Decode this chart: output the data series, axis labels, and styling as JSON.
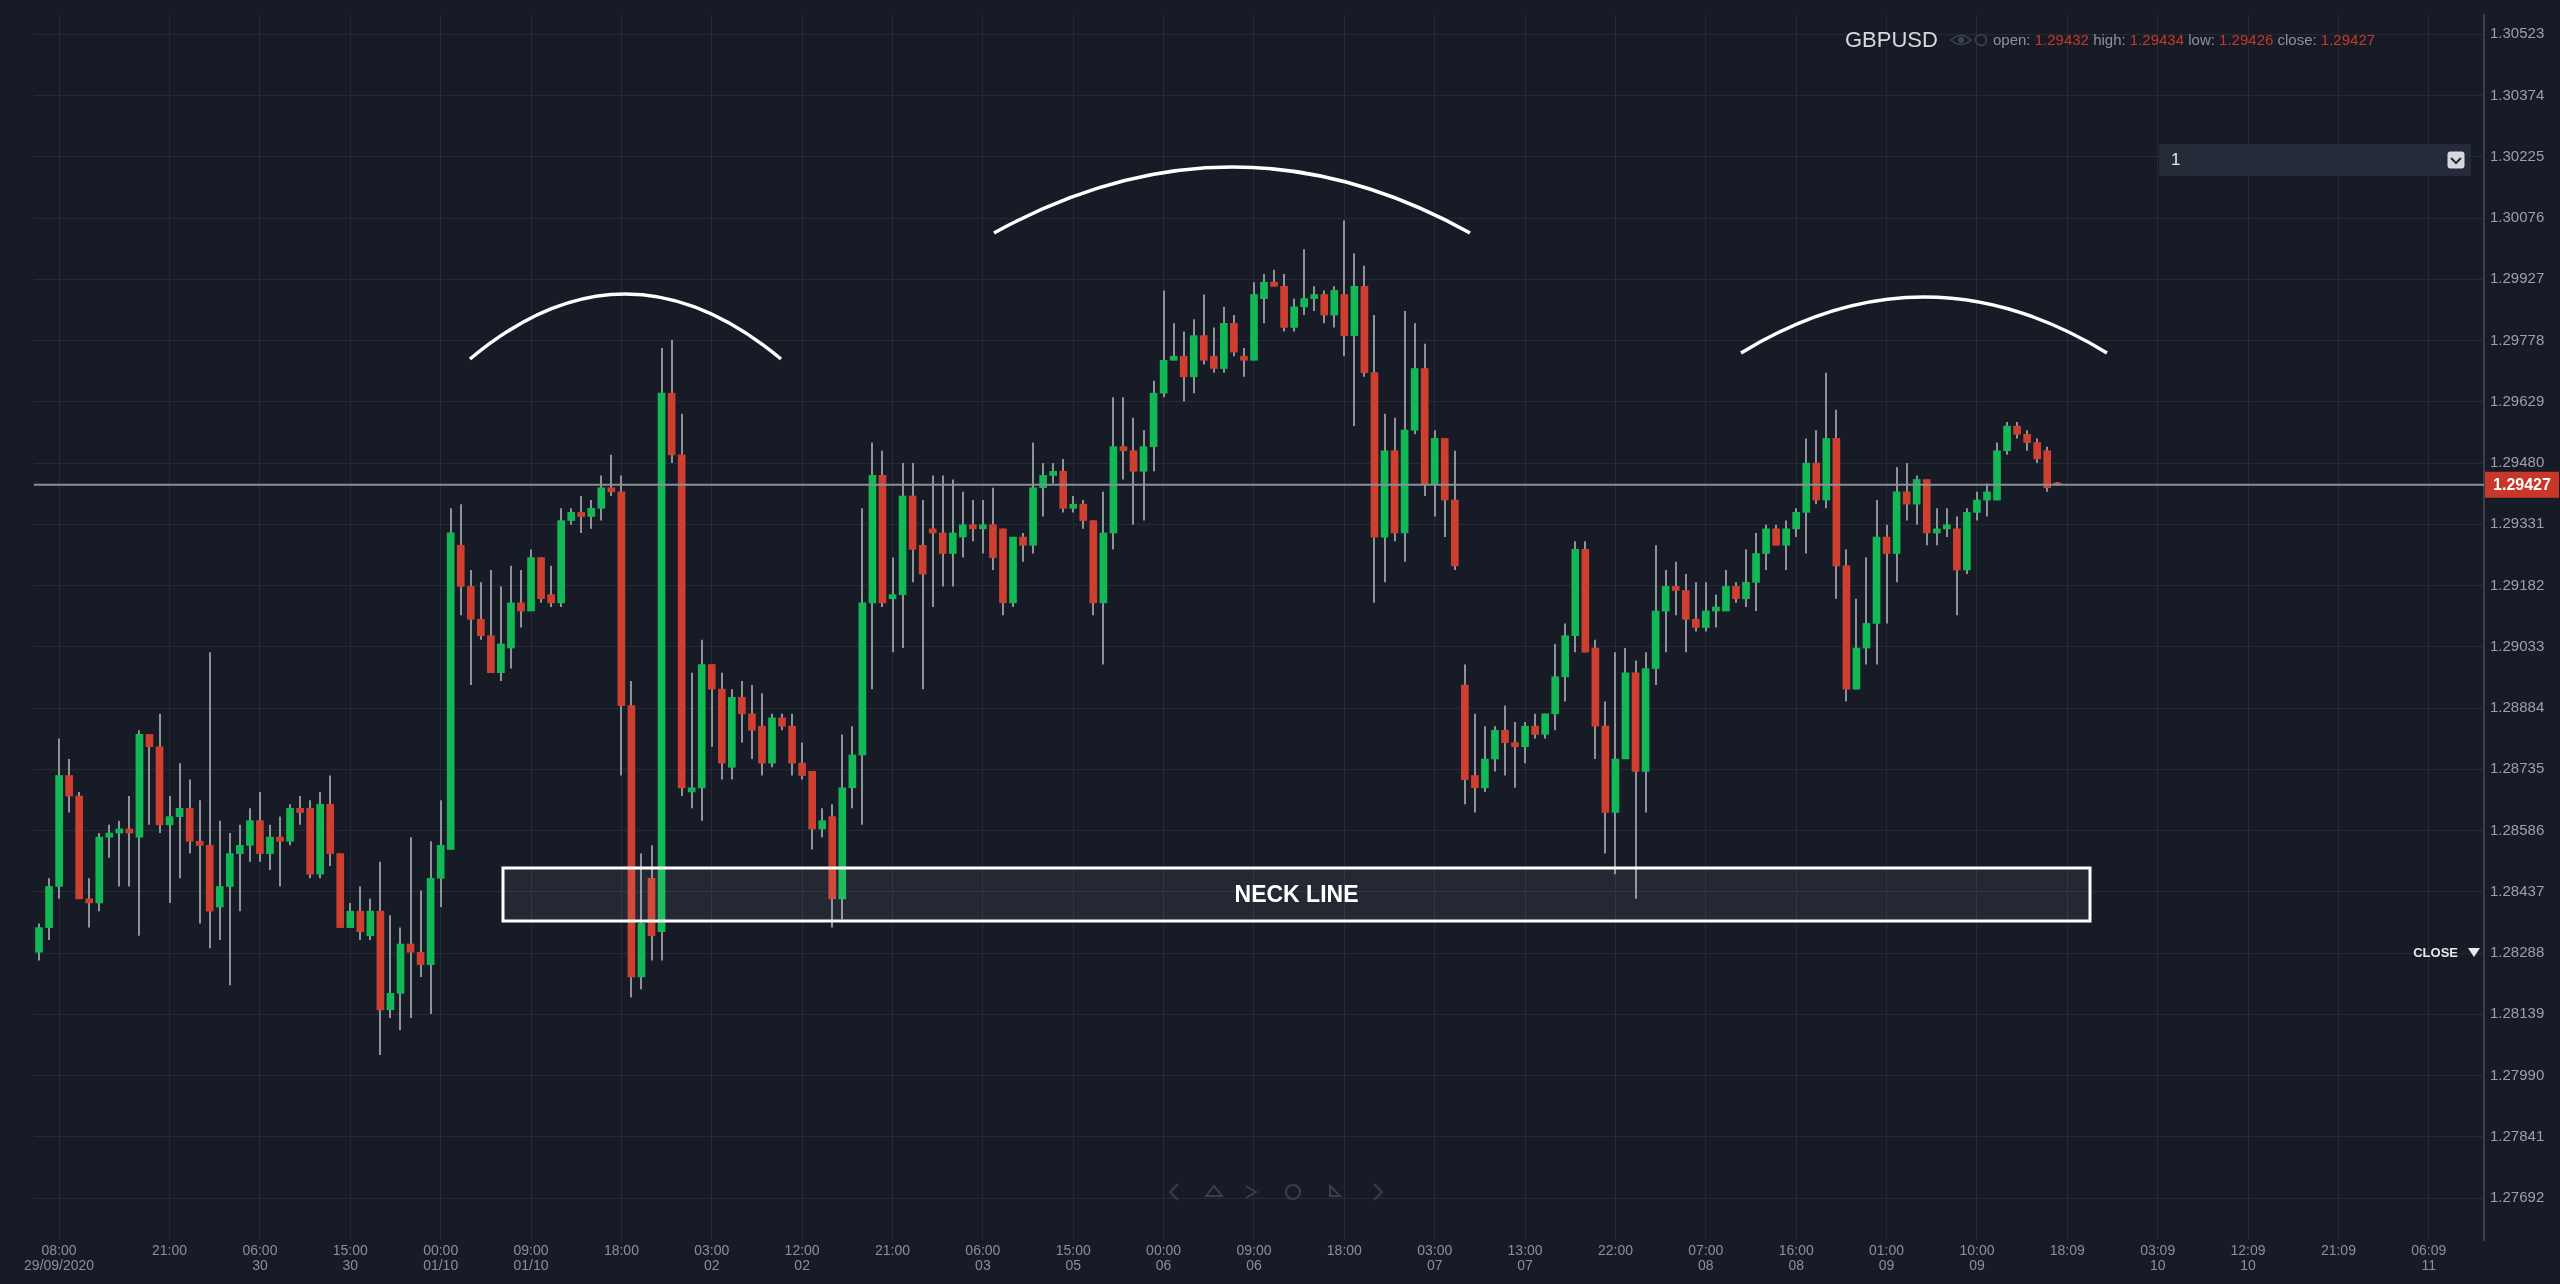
{
  "chart_data": {
    "type": "candlestick",
    "title": "GBPUSD",
    "subtitle": "open: 1.29432 high: 1.29434 low: 1.29426 close: 1.29427",
    "categories": [
      null,
      null,
      "08:00\n29/09/2020",
      null,
      null,
      null,
      null,
      null,
      null,
      null,
      null,
      null,
      null,
      "21:00",
      null,
      null,
      null,
      null,
      null,
      null,
      null,
      null,
      "06:00\n30",
      null,
      null,
      null,
      null,
      null,
      null,
      null,
      null,
      "15:00\n30",
      null,
      null,
      null,
      null,
      null,
      null,
      null,
      null,
      "00:00\n01/10",
      null,
      null,
      null,
      null,
      null,
      null,
      null,
      null,
      "09:00\n01/10",
      null,
      null,
      null,
      null,
      null,
      null,
      null,
      null,
      "18:00",
      null,
      null,
      null,
      null,
      null,
      null,
      null,
      null,
      "03:00\n02",
      null,
      null,
      null,
      null,
      null,
      null,
      null,
      null,
      "12:00\n02",
      null,
      null,
      null,
      null,
      null,
      null,
      null,
      null,
      "21:00",
      null,
      null,
      null,
      null,
      null,
      null,
      null,
      null,
      "06:00\n03",
      null,
      null,
      null,
      null,
      null,
      null,
      null,
      null,
      "15:00\n05",
      null,
      null,
      null,
      null,
      null,
      null,
      null,
      null,
      "00:00\n06",
      null,
      null,
      null,
      null,
      null,
      null,
      null,
      null,
      "09:00\n06",
      null,
      null,
      null,
      null,
      null,
      null,
      null,
      null,
      "18:00",
      null,
      null,
      null,
      null,
      null,
      null,
      null,
      null,
      "03:00\n07",
      null,
      null,
      null,
      null,
      null,
      null,
      null,
      null,
      "13:00\n07",
      null,
      null,
      null,
      null,
      null,
      null,
      null,
      null,
      "22:00",
      null,
      null,
      null,
      null,
      null,
      null,
      null,
      null,
      "07:00\n08",
      null,
      null,
      null,
      null,
      null,
      null,
      null,
      null,
      "16:00\n08",
      null,
      null,
      null,
      null,
      null,
      null,
      null,
      null,
      "01:00\n09",
      null,
      null,
      null,
      null,
      null,
      null,
      null,
      null,
      "10:00\n09",
      null,
      null,
      null,
      null,
      null,
      null,
      null,
      null,
      "18:09",
      null,
      null,
      null,
      null,
      null,
      null,
      null,
      null,
      "03:09\n10",
      null,
      null,
      null,
      null,
      null,
      null,
      null,
      null,
      "12:09\n10",
      null,
      null,
      null,
      null,
      null,
      null,
      null,
      null,
      "21:09",
      null,
      null,
      null,
      null,
      null,
      null,
      null,
      null,
      "06:09\n11",
      null,
      null,
      null,
      null,
      null
    ],
    "ohlc": [
      [
        1.2829,
        1.2836,
        1.2827,
        1.2835
      ],
      [
        1.2835,
        1.2847,
        1.2832,
        1.2845
      ],
      [
        1.2845,
        1.2881,
        1.2842,
        1.2872
      ],
      [
        1.2872,
        1.2876,
        1.2863,
        1.2867
      ],
      [
        1.2867,
        1.2868,
        1.2842,
        1.2842
      ],
      [
        1.2842,
        1.2847,
        1.2835,
        1.2841
      ],
      [
        1.2841,
        1.2858,
        1.2839,
        1.2857
      ],
      [
        1.2857,
        1.286,
        1.2852,
        1.2858
      ],
      [
        1.2858,
        1.2861,
        1.2845,
        1.2859
      ],
      [
        1.2859,
        1.2867,
        1.2845,
        1.2858
      ],
      [
        1.2857,
        1.2883,
        1.2833,
        1.2882
      ],
      [
        1.2882,
        1.2882,
        1.286,
        1.2879
      ],
      [
        1.2879,
        1.2887,
        1.2858,
        1.286
      ],
      [
        1.286,
        1.2867,
        1.2841,
        1.2862
      ],
      [
        1.2862,
        1.2875,
        1.2847,
        1.2864
      ],
      [
        1.2864,
        1.2871,
        1.2853,
        1.2856
      ],
      [
        1.2856,
        1.2866,
        1.2836,
        1.2855
      ],
      [
        1.2855,
        1.2902,
        1.283,
        1.2839
      ],
      [
        1.284,
        1.2861,
        1.2832,
        1.2845
      ],
      [
        1.2845,
        1.2858,
        1.2821,
        1.2853
      ],
      [
        1.2853,
        1.286,
        1.2839,
        1.2855
      ],
      [
        1.2855,
        1.2864,
        1.2851,
        1.2861
      ],
      [
        1.2861,
        1.2868,
        1.2851,
        1.2853
      ],
      [
        1.2853,
        1.286,
        1.2849,
        1.2857
      ],
      [
        1.2857,
        1.2862,
        1.2845,
        1.2856
      ],
      [
        1.2856,
        1.2865,
        1.2855,
        1.2864
      ],
      [
        1.2864,
        1.2867,
        1.286,
        1.2863
      ],
      [
        1.2864,
        1.2866,
        1.2847,
        1.2848
      ],
      [
        1.2848,
        1.2868,
        1.2847,
        1.2865
      ],
      [
        1.2865,
        1.2872,
        1.285,
        1.2853
      ],
      [
        1.2853,
        1.2853,
        1.2835,
        1.2835
      ],
      [
        1.2835,
        1.2841,
        1.2835,
        1.2839
      ],
      [
        1.2839,
        1.2845,
        1.2832,
        1.2834
      ],
      [
        1.2833,
        1.2842,
        1.2832,
        1.2839
      ],
      [
        1.2839,
        1.2851,
        1.2804,
        1.2815
      ],
      [
        1.2815,
        1.2838,
        1.2813,
        1.2819
      ],
      [
        1.2819,
        1.2835,
        1.281,
        1.2831
      ],
      [
        1.2831,
        1.2857,
        1.2813,
        1.2829
      ],
      [
        1.2829,
        1.2844,
        1.2823,
        1.2826
      ],
      [
        1.2826,
        1.2856,
        1.2814,
        1.2847
      ],
      [
        1.2847,
        1.2866,
        1.284,
        1.2855
      ],
      [
        1.2854,
        1.2937,
        1.2854,
        1.2931
      ],
      [
        1.2928,
        1.2938,
        1.2911,
        1.2918
      ],
      [
        1.2918,
        1.2922,
        1.2894,
        1.291
      ],
      [
        1.291,
        1.2919,
        1.2905,
        1.2906
      ],
      [
        1.2906,
        1.2922,
        1.2897,
        1.2897
      ],
      [
        1.2897,
        1.2918,
        1.2895,
        1.2904
      ],
      [
        1.2903,
        1.2923,
        1.2898,
        1.2914
      ],
      [
        1.2914,
        1.2922,
        1.2908,
        1.2912
      ],
      [
        1.2912,
        1.2927,
        1.2912,
        1.2925
      ],
      [
        1.2925,
        1.2925,
        1.2914,
        1.2915
      ],
      [
        1.2916,
        1.2923,
        1.2913,
        1.2914
      ],
      [
        1.2914,
        1.2937,
        1.2913,
        1.2934
      ],
      [
        1.2934,
        1.2937,
        1.2933,
        1.2936
      ],
      [
        1.2936,
        1.294,
        1.2931,
        1.2935
      ],
      [
        1.2935,
        1.2939,
        1.2932,
        1.2937
      ],
      [
        1.2937,
        1.2945,
        1.2934,
        1.2942
      ],
      [
        1.2942,
        1.295,
        1.294,
        1.2941
      ],
      [
        1.2941,
        1.2945,
        1.2872,
        1.2889
      ],
      [
        1.2889,
        1.2895,
        1.2818,
        1.2823
      ],
      [
        1.2823,
        1.2853,
        1.282,
        1.2836
      ],
      [
        1.2847,
        1.2855,
        1.2827,
        1.2833
      ],
      [
        1.2834,
        1.2976,
        1.2827,
        1.2965
      ],
      [
        1.2965,
        1.2978,
        1.2948,
        1.295
      ],
      [
        1.295,
        1.296,
        1.2867,
        1.2869
      ],
      [
        1.2868,
        1.2897,
        1.2864,
        1.2869
      ],
      [
        1.2869,
        1.2905,
        1.2861,
        1.2899
      ],
      [
        1.2899,
        1.2899,
        1.2879,
        1.2893
      ],
      [
        1.2893,
        1.2897,
        1.2871,
        1.2875
      ],
      [
        1.2874,
        1.2893,
        1.2871,
        1.2891
      ],
      [
        1.2891,
        1.2895,
        1.288,
        1.2887
      ],
      [
        1.2887,
        1.2894,
        1.2876,
        1.2883
      ],
      [
        1.2884,
        1.2892,
        1.2872,
        1.2875
      ],
      [
        1.2875,
        1.2887,
        1.2874,
        1.2886
      ],
      [
        1.2886,
        1.2887,
        1.2883,
        1.2884
      ],
      [
        1.2884,
        1.2887,
        1.2872,
        1.2875
      ],
      [
        1.2875,
        1.288,
        1.2871,
        1.2872
      ],
      [
        1.2873,
        1.2873,
        1.2854,
        1.2859
      ],
      [
        1.2859,
        1.2864,
        1.2857,
        1.2861
      ],
      [
        1.2862,
        1.2865,
        1.2835,
        1.2842
      ],
      [
        1.2842,
        1.2882,
        1.2837,
        1.2869
      ],
      [
        1.2869,
        1.2884,
        1.2864,
        1.2877
      ],
      [
        1.2877,
        1.2937,
        1.286,
        1.2914
      ],
      [
        1.2914,
        1.2953,
        1.2893,
        1.2945
      ],
      [
        1.2945,
        1.2951,
        1.2913,
        1.2914
      ],
      [
        1.2915,
        1.2925,
        1.2902,
        1.2916
      ],
      [
        1.2916,
        1.2948,
        1.2903,
        1.294
      ],
      [
        1.294,
        1.2948,
        1.2919,
        1.2927
      ],
      [
        1.2928,
        1.2939,
        1.2893,
        1.2921
      ],
      [
        1.2932,
        1.2945,
        1.2913,
        1.2931
      ],
      [
        1.2931,
        1.2945,
        1.2918,
        1.2926
      ],
      [
        1.2926,
        1.2944,
        1.2918,
        1.2931
      ],
      [
        1.293,
        1.2941,
        1.2925,
        1.2933
      ],
      [
        1.2933,
        1.2939,
        1.2929,
        1.2932
      ],
      [
        1.2932,
        1.2939,
        1.2926,
        1.2933
      ],
      [
        1.2933,
        1.2942,
        1.2922,
        1.2925
      ],
      [
        1.2932,
        1.2932,
        1.2911,
        1.2914
      ],
      [
        1.2914,
        1.293,
        1.2913,
        1.293
      ],
      [
        1.293,
        1.2931,
        1.2924,
        1.2928
      ],
      [
        1.2928,
        1.2953,
        1.2926,
        1.2942
      ],
      [
        1.2942,
        1.2948,
        1.2935,
        1.2945
      ],
      [
        1.2945,
        1.2948,
        1.2943,
        1.2946
      ],
      [
        1.2946,
        1.2949,
        1.2936,
        1.2937
      ],
      [
        1.2937,
        1.294,
        1.2936,
        1.2938
      ],
      [
        1.2938,
        1.2939,
        1.2932,
        1.2934
      ],
      [
        1.2934,
        1.2934,
        1.2911,
        1.2914
      ],
      [
        1.2914,
        1.2941,
        1.2899,
        1.2931
      ],
      [
        1.2931,
        1.2964,
        1.2927,
        1.2952
      ],
      [
        1.2952,
        1.2964,
        1.2944,
        1.2951
      ],
      [
        1.2951,
        1.2959,
        1.2933,
        1.2946
      ],
      [
        1.2946,
        1.2956,
        1.2934,
        1.2952
      ],
      [
        1.2952,
        1.2968,
        1.2946,
        1.2965
      ],
      [
        1.2965,
        1.299,
        1.2964,
        1.2973
      ],
      [
        1.2973,
        1.2982,
        1.2973,
        1.2974
      ],
      [
        1.2974,
        1.298,
        1.2963,
        1.2969
      ],
      [
        1.2969,
        1.2983,
        1.2965,
        1.2979
      ],
      [
        1.2979,
        1.2989,
        1.2972,
        1.2973
      ],
      [
        1.2974,
        1.2981,
        1.297,
        1.2971
      ],
      [
        1.2971,
        1.2986,
        1.297,
        1.2982
      ],
      [
        1.2982,
        1.2984,
        1.2974,
        1.2975
      ],
      [
        1.2974,
        1.2976,
        1.2969,
        1.2973
      ],
      [
        1.2973,
        1.2992,
        1.2973,
        1.2989
      ],
      [
        1.2988,
        1.2994,
        1.2982,
        1.2992
      ],
      [
        1.2992,
        1.2995,
        1.2991,
        1.2991
      ],
      [
        1.2991,
        1.2994,
        1.298,
        1.2981
      ],
      [
        1.2981,
        1.2988,
        1.298,
        1.2986
      ],
      [
        1.2986,
        1.3,
        1.2984,
        1.2988
      ],
      [
        1.2988,
        1.2991,
        1.2985,
        1.2989
      ],
      [
        1.2989,
        1.299,
        1.2982,
        1.2984
      ],
      [
        1.2984,
        1.2991,
        1.2981,
        1.299
      ],
      [
        1.2989,
        1.3007,
        1.2974,
        1.2979
      ],
      [
        1.2979,
        1.2999,
        1.2957,
        1.2991
      ],
      [
        1.2991,
        1.2996,
        1.2969,
        1.297
      ],
      [
        1.297,
        1.2984,
        1.2914,
        1.293
      ],
      [
        1.293,
        1.296,
        1.2919,
        1.2951
      ],
      [
        1.2951,
        1.2959,
        1.2929,
        1.2931
      ],
      [
        1.2931,
        1.2985,
        1.2924,
        1.2956
      ],
      [
        1.2956,
        1.2982,
        1.2955,
        1.2971
      ],
      [
        1.2971,
        1.2977,
        1.294,
        1.2943
      ],
      [
        1.2943,
        1.2956,
        1.2935,
        1.2954
      ],
      [
        1.2954,
        1.2954,
        1.293,
        1.2939
      ],
      [
        1.2939,
        1.2951,
        1.2922,
        1.2923
      ],
      [
        1.2894,
        1.2899,
        1.2865,
        1.2871
      ],
      [
        1.2872,
        1.2887,
        1.2863,
        1.2869
      ],
      [
        1.2869,
        1.2884,
        1.2868,
        1.2876
      ],
      [
        1.2876,
        1.2884,
        1.2873,
        1.2883
      ],
      [
        1.2883,
        1.2889,
        1.2872,
        1.288
      ],
      [
        1.288,
        1.2885,
        1.2869,
        1.2879
      ],
      [
        1.2879,
        1.2885,
        1.2875,
        1.2884
      ],
      [
        1.2884,
        1.2887,
        1.2881,
        1.2882
      ],
      [
        1.2882,
        1.2887,
        1.2881,
        1.2887
      ],
      [
        1.2887,
        1.2904,
        1.2883,
        1.2896
      ],
      [
        1.2896,
        1.2909,
        1.289,
        1.2906
      ],
      [
        1.2906,
        1.2929,
        1.2902,
        1.2927
      ],
      [
        1.2927,
        1.2929,
        1.2902,
        1.2902
      ],
      [
        1.2903,
        1.2905,
        1.2876,
        1.2884
      ],
      [
        1.2884,
        1.289,
        1.2853,
        1.2863
      ],
      [
        1.2863,
        1.2902,
        1.2848,
        1.2876
      ],
      [
        1.2876,
        1.2903,
        1.2876,
        1.2897
      ],
      [
        1.2897,
        1.29,
        1.2842,
        1.2873
      ],
      [
        1.2873,
        1.2902,
        1.2863,
        1.2898
      ],
      [
        1.2898,
        1.2928,
        1.2894,
        1.2912
      ],
      [
        1.2912,
        1.2922,
        1.2902,
        1.2918
      ],
      [
        1.2918,
        1.2924,
        1.2911,
        1.2917
      ],
      [
        1.2917,
        1.2921,
        1.2902,
        1.291
      ],
      [
        1.291,
        1.2919,
        1.2907,
        1.2908
      ],
      [
        1.2908,
        1.2919,
        1.2907,
        1.2912
      ],
      [
        1.2912,
        1.2916,
        1.2908,
        1.2913
      ],
      [
        1.2912,
        1.2922,
        1.2912,
        1.2918
      ],
      [
        1.2918,
        1.2919,
        1.2914,
        1.2915
      ],
      [
        1.2915,
        1.2927,
        1.2913,
        1.2919
      ],
      [
        1.2919,
        1.2931,
        1.2912,
        1.2926
      ],
      [
        1.2926,
        1.2933,
        1.2922,
        1.2932
      ],
      [
        1.2932,
        1.2933,
        1.2928,
        1.2928
      ],
      [
        1.2928,
        1.2934,
        1.2922,
        1.2932
      ],
      [
        1.2932,
        1.2937,
        1.293,
        1.2936
      ],
      [
        1.2936,
        1.2954,
        1.2926,
        1.2948
      ],
      [
        1.2948,
        1.2956,
        1.2938,
        1.2939
      ],
      [
        1.2939,
        1.297,
        1.2937,
        1.2954
      ],
      [
        1.2954,
        1.2961,
        1.2915,
        1.2923
      ],
      [
        1.2923,
        1.2927,
        1.289,
        1.2893
      ],
      [
        1.2893,
        1.2915,
        1.2893,
        1.2903
      ],
      [
        1.2903,
        1.2925,
        1.2899,
        1.2909
      ],
      [
        1.2909,
        1.2939,
        1.2899,
        1.293
      ],
      [
        1.293,
        1.2933,
        1.2909,
        1.2926
      ],
      [
        1.2926,
        1.2947,
        1.2919,
        1.2941
      ],
      [
        1.2941,
        1.2948,
        1.2934,
        1.2938
      ],
      [
        1.2938,
        1.2945,
        1.2933,
        1.2944
      ],
      [
        1.2944,
        1.2944,
        1.2928,
        1.2931
      ],
      [
        1.2931,
        1.2937,
        1.2928,
        1.2932
      ],
      [
        1.2932,
        1.2937,
        1.293,
        1.2933
      ],
      [
        1.2932,
        1.2935,
        1.2911,
        1.2922
      ],
      [
        1.2922,
        1.2937,
        1.2921,
        1.2936
      ],
      [
        1.2936,
        1.2941,
        1.2934,
        1.2939
      ],
      [
        1.2939,
        1.2943,
        1.2935,
        1.2941
      ],
      [
        1.2939,
        1.2953,
        1.2939,
        1.2951
      ],
      [
        1.2951,
        1.2958,
        1.295,
        1.2957
      ],
      [
        1.2957,
        1.2958,
        1.2954,
        1.2955
      ],
      [
        1.2955,
        1.2956,
        1.2951,
        1.2953
      ],
      [
        1.2953,
        1.2954,
        1.2948,
        1.2949
      ],
      [
        1.2951,
        1.2952,
        1.2941,
        1.2942
      ],
      [
        1.29432,
        1.29434,
        1.29426,
        1.29427
      ],
      null,
      null,
      null,
      null,
      null,
      null,
      null,
      null,
      null,
      null,
      null,
      null,
      null,
      null,
      null,
      null,
      null,
      null,
      null,
      null,
      null,
      null,
      null,
      null,
      null,
      null,
      null,
      null,
      null,
      null,
      null,
      null,
      null,
      null,
      null,
      null,
      null,
      null,
      null,
      null,
      null,
      null
    ],
    "colors": [
      "#12b856",
      "#12b856",
      "#12b856",
      "#cf3f2f",
      "#cf3f2f",
      "#cf3f2f",
      "#12b856",
      "#12b856",
      "#12b856",
      "#cf3f2f",
      "#12b856",
      "#cf3f2f",
      "#cf3f2f",
      "#12b856",
      "#12b856",
      "#cf3f2f",
      "#cf3f2f",
      "#cf3f2f",
      "#12b856",
      "#12b856",
      "#12b856",
      "#12b856",
      "#cf3f2f",
      "#12b856",
      "#cf3f2f",
      "#12b856",
      "#cf3f2f",
      "#cf3f2f",
      "#12b856",
      "#cf3f2f",
      "#cf3f2f",
      "#12b856",
      "#cf3f2f",
      "#12b856",
      "#cf3f2f",
      "#12b856",
      "#12b856",
      "#cf3f2f",
      "#cf3f2f",
      "#12b856",
      "#12b856",
      "#12b856",
      "#cf3f2f",
      "#cf3f2f",
      "#cf3f2f",
      "#cf3f2f",
      "#12b856",
      "#12b856",
      "#cf3f2f",
      "#12b856",
      "#cf3f2f",
      "#cf3f2f",
      "#12b856",
      "#12b856",
      "#cf3f2f",
      "#12b856",
      "#12b856",
      "#cf3f2f",
      "#cf3f2f",
      "#cf3f2f",
      "#12b856",
      "#cf3f2f",
      "#12b856",
      "#cf3f2f",
      "#cf3f2f",
      "#12b856",
      "#12b856",
      "#cf3f2f",
      "#cf3f2f",
      "#12b856",
      "#cf3f2f",
      "#cf3f2f",
      "#cf3f2f",
      "#12b856",
      "#cf3f2f",
      "#cf3f2f",
      "#cf3f2f",
      "#cf3f2f",
      "#12b856",
      "#cf3f2f",
      "#12b856",
      "#12b856",
      "#12b856",
      "#12b856",
      "#cf3f2f",
      "#12b856",
      "#12b856",
      "#cf3f2f",
      "#cf3f2f",
      "#cf3f2f",
      "#cf3f2f",
      "#12b856",
      "#12b856",
      "#cf3f2f",
      "#12b856",
      "#cf3f2f",
      "#cf3f2f",
      "#12b856",
      "#cf3f2f",
      "#12b856",
      "#12b856",
      "#12b856",
      "#cf3f2f",
      "#12b856",
      "#cf3f2f",
      "#cf3f2f",
      "#12b856",
      "#12b856",
      "#cf3f2f",
      "#cf3f2f",
      "#12b856",
      "#12b856",
      "#12b856",
      "#12b856",
      "#cf3f2f",
      "#12b856",
      "#cf3f2f",
      "#cf3f2f",
      "#12b856",
      "#cf3f2f",
      "#cf3f2f",
      "#12b856",
      "#12b856",
      "#cf3f2f",
      "#cf3f2f",
      "#12b856",
      "#12b856",
      "#12b856",
      "#cf3f2f",
      "#12b856",
      "#cf3f2f",
      "#12b856",
      "#cf3f2f",
      "#cf3f2f",
      "#12b856",
      "#cf3f2f",
      "#12b856",
      "#12b856",
      "#cf3f2f",
      "#12b856",
      "#cf3f2f",
      "#cf3f2f",
      "#cf3f2f",
      "#cf3f2f",
      "#12b856",
      "#12b856",
      "#cf3f2f",
      "#cf3f2f",
      "#12b856",
      "#cf3f2f",
      "#12b856",
      "#12b856",
      "#12b856",
      "#12b856",
      "#cf3f2f",
      "#cf3f2f",
      "#cf3f2f",
      "#12b856",
      "#12b856",
      "#cf3f2f",
      "#12b856",
      "#12b856",
      "#12b856",
      "#cf3f2f",
      "#cf3f2f",
      "#cf3f2f",
      "#12b856",
      "#12b856",
      "#12b856",
      "#cf3f2f",
      "#12b856",
      "#12b856",
      "#12b856",
      "#cf3f2f",
      "#12b856",
      "#12b856",
      "#12b856",
      "#cf3f2f",
      "#12b856",
      "#cf3f2f",
      "#cf3f2f",
      "#12b856",
      "#12b856",
      "#12b856",
      "#cf3f2f",
      "#12b856",
      "#cf3f2f",
      "#12b856",
      "#cf3f2f",
      "#12b856",
      "#12b856",
      "#cf3f2f",
      "#12b856",
      "#12b856",
      "#12b856",
      "#12b856",
      "#12b856",
      "#cf3f2f",
      "#cf3f2f",
      "#cf3f2f",
      "#cf3f2f",
      "#cf3f2f",
      null,
      null,
      null,
      null,
      null,
      null,
      null,
      null,
      null,
      null,
      null,
      null,
      null,
      null,
      null,
      null,
      null,
      null,
      null,
      null,
      null,
      null,
      null,
      null,
      null,
      null,
      null,
      null,
      null,
      null,
      null,
      null,
      null,
      null,
      null,
      null,
      null,
      null,
      null,
      null,
      null,
      null
    ],
    "ylim": [
      1.2759,
      1.3057
    ],
    "yticks": [
      1.30523,
      1.30374,
      1.30225,
      1.30076,
      1.29927,
      1.29778,
      1.29629,
      {
        "value": 1.2948,
        "label": "1.29480"
      },
      1.29331,
      1.29182,
      1.29033,
      1.28884,
      1.28735,
      1.28586,
      1.28437,
      1.28288,
      1.28139,
      {
        "value": 1.2799,
        "label": "1.27990"
      },
      1.27841,
      1.27692
    ],
    "grid": true,
    "ref_lines": [
      {
        "axis": "y",
        "value": 1.29427,
        "label": "1.29427",
        "color": "#8b8f98"
      }
    ],
    "bands": [
      {
        "axis": "y",
        "from": 1.28366,
        "to": 1.28495,
        "label": "NECK LINE",
        "color": "#ffffff"
      }
    ],
    "annotations": [
      "1",
      "CLOSE"
    ]
  }
}
